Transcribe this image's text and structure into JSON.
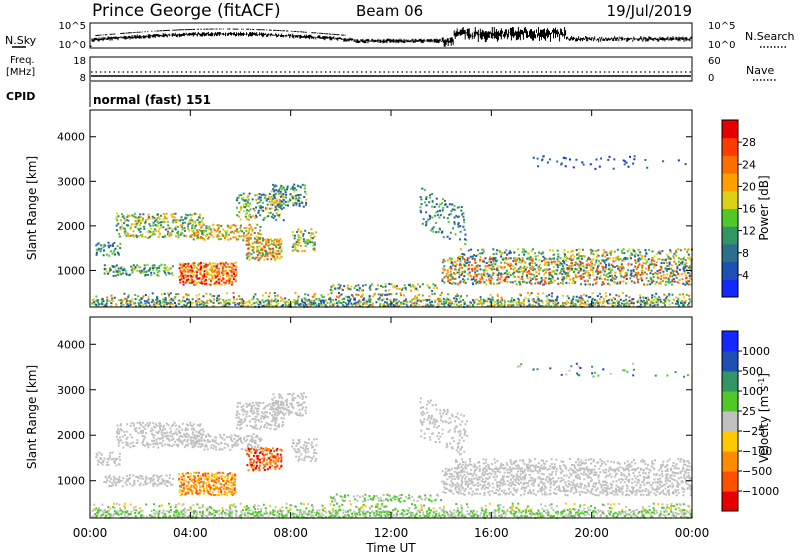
{
  "header": {
    "title": "Prince George (fitACF)",
    "beam": "Beam 06",
    "date": "19/Jul/2019"
  },
  "noise_panel": {
    "left_label": "N.Sky",
    "right_label": "N.Search",
    "left_ticks": [
      "10^5",
      "10^0"
    ],
    "right_ticks": [
      "10^5",
      "10^0"
    ]
  },
  "freq_panel": {
    "left_label_1": "Freq.",
    "left_label_2": "[MHz]",
    "left_ticks": [
      "18",
      "8"
    ],
    "right_label": "Nave",
    "right_ticks": [
      "60",
      "0"
    ]
  },
  "cpid": {
    "label": "CPID",
    "value": "normal (fast) 151"
  },
  "colors": {
    "power": [
      "#1428ff",
      "#1e50b4",
      "#2c6e8c",
      "#329664",
      "#50c828",
      "#dcd214",
      "#ffa000",
      "#ff6e00",
      "#ff3c00",
      "#e60000"
    ],
    "velocity": [
      "#e60000",
      "#ff5000",
      "#ff8c00",
      "#ffc800",
      "#c0c0c0",
      "#50c828",
      "#329664",
      "#1e50b4",
      "#1428ff"
    ]
  },
  "chart_data": [
    {
      "type": "heatmap",
      "name": "power",
      "ylabel": "Slant Range [km]",
      "xlabel": "",
      "x_range_hours": [
        0,
        24
      ],
      "ylim": [
        180,
        4600
      ],
      "y_ticks": [
        "1000",
        "2000",
        "3000",
        "4000"
      ],
      "x_ticks": [],
      "colorbar": {
        "label": "Power [dB]",
        "min": 0,
        "max": 32,
        "ticks": [
          "4",
          "8",
          "12",
          "16",
          "20",
          "24",
          "28"
        ]
      }
    },
    {
      "type": "heatmap",
      "name": "velocity",
      "ylabel": "Slant Range [km]",
      "xlabel": "Time UT",
      "x_range_hours": [
        0,
        24
      ],
      "ylim": [
        180,
        4600
      ],
      "y_ticks": [
        "1000",
        "2000",
        "3000",
        "4000"
      ],
      "x_ticks": [
        "00:00",
        "04:00",
        "08:00",
        "12:00",
        "16:00",
        "20:00",
        "00:00"
      ],
      "colorbar": {
        "label": "Velocity [m s",
        "label_sup": "-1",
        "label_end": "]",
        "ticks": [
          "1000",
          "500",
          "100",
          "25",
          "−25",
          "−100",
          "−500",
          "−1000"
        ]
      }
    }
  ]
}
